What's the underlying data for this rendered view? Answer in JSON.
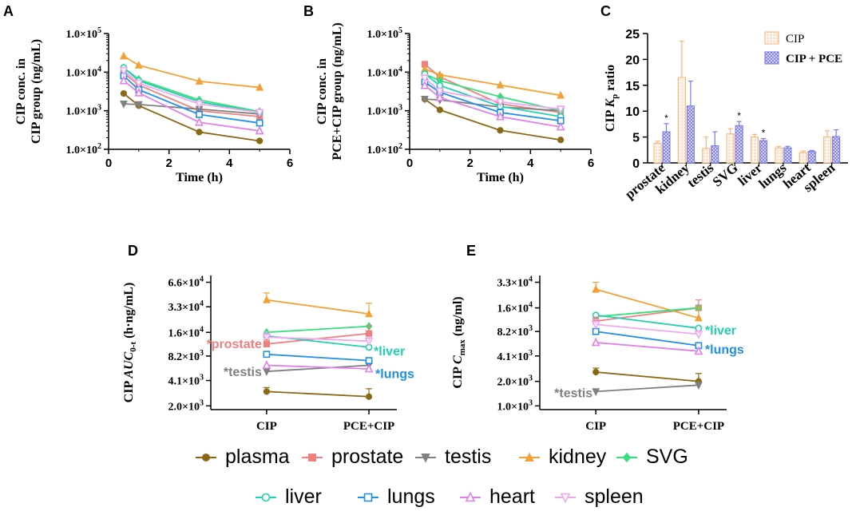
{
  "colors": {
    "plasma": "#8B6914",
    "prostate": "#F08080",
    "testis": "#808080",
    "kidney": "#F5A033",
    "svg": "#33E07A",
    "liver": "#20D0B0",
    "lungs": "#1E90E8",
    "heart": "#E080E8",
    "spleen": "#F0A8F0",
    "cip_bar": "#F5B77A",
    "pce_bar": "#7B7BE8",
    "axis": "#000000"
  },
  "legend": {
    "row1": [
      {
        "key": "plasma",
        "label": "plasma",
        "marker": "circle"
      },
      {
        "key": "prostate",
        "label": "prostate",
        "marker": "square"
      },
      {
        "key": "testis",
        "label": "testis",
        "marker": "triangle-down"
      },
      {
        "key": "kidney",
        "label": "kidney",
        "marker": "triangle-up"
      },
      {
        "key": "svg",
        "label": "SVG",
        "marker": "diamond"
      }
    ],
    "row2": [
      {
        "key": "liver",
        "label": "liver",
        "marker": "circle-open"
      },
      {
        "key": "lungs",
        "label": "lungs",
        "marker": "square-open"
      },
      {
        "key": "heart",
        "label": "heart",
        "marker": "triangle-open"
      },
      {
        "key": "spleen",
        "label": "spleen",
        "marker": "triangle-down-open"
      }
    ]
  },
  "chart_data": [
    {
      "panel": "A",
      "type": "line",
      "ylabel_line1": "CIP conc. in",
      "ylabel_line2": "CIP group (ng/mL)",
      "xlabel": "Time (h)",
      "yscale": "log",
      "ylim": [
        100,
        100000
      ],
      "yticks": [
        {
          "v": 100,
          "m": "1.0×10",
          "e": "2"
        },
        {
          "v": 1000,
          "m": "1.0×10",
          "e": "3"
        },
        {
          "v": 10000,
          "m": "1.0×10",
          "e": "4"
        },
        {
          "v": 100000,
          "m": "1.0×10",
          "e": "5"
        }
      ],
      "xlim": [
        0,
        6
      ],
      "xticks": [
        "0",
        "2",
        "4",
        "6"
      ],
      "x": [
        0.5,
        1,
        3,
        5
      ],
      "series": [
        {
          "key": "plasma",
          "values": [
            2800,
            1350,
            280,
            165
          ]
        },
        {
          "key": "prostate",
          "values": [
            9500,
            4600,
            1000,
            700
          ]
        },
        {
          "key": "testis",
          "values": [
            1500,
            1450,
            1100,
            820
          ]
        },
        {
          "key": "kidney",
          "values": [
            26000,
            15000,
            5800,
            4000
          ]
        },
        {
          "key": "svg",
          "values": [
            13000,
            6500,
            1900,
            950
          ]
        },
        {
          "key": "liver",
          "values": [
            13000,
            6000,
            1700,
            900
          ]
        },
        {
          "key": "lungs",
          "values": [
            8000,
            3500,
            800,
            480
          ]
        },
        {
          "key": "heart",
          "values": [
            6000,
            2900,
            500,
            300
          ]
        },
        {
          "key": "spleen",
          "values": [
            11000,
            5200,
            1500,
            900
          ]
        }
      ]
    },
    {
      "panel": "B",
      "type": "line",
      "ylabel_line1": "CIP conc. in",
      "ylabel_line2": "PCE+CIP group (ng/mL)",
      "xlabel": "Time (h)",
      "yscale": "log",
      "ylim": [
        100,
        100000
      ],
      "yticks": [
        {
          "v": 100,
          "m": "1.0×10",
          "e": "2"
        },
        {
          "v": 1000,
          "m": "1.0×10",
          "e": "3"
        },
        {
          "v": 10000,
          "m": "1.0×10",
          "e": "4"
        },
        {
          "v": 100000,
          "m": "1.0×10",
          "e": "5"
        }
      ],
      "xlim": [
        0,
        6
      ],
      "xticks": [
        "0",
        "2",
        "4",
        "6"
      ],
      "x": [
        0.5,
        1,
        3,
        5
      ],
      "series": [
        {
          "key": "plasma",
          "values": [
            2000,
            1050,
            310,
            175
          ]
        },
        {
          "key": "prostate",
          "values": [
            16000,
            7500,
            1500,
            900
          ]
        },
        {
          "key": "testis",
          "values": [
            2000,
            1900,
            1250,
            1000
          ]
        },
        {
          "key": "kidney",
          "values": [
            12000,
            8500,
            4600,
            2500
          ]
        },
        {
          "key": "svg",
          "values": [
            9000,
            6000,
            2300,
            1000
          ]
        },
        {
          "key": "liver",
          "values": [
            9000,
            4500,
            1300,
            700
          ]
        },
        {
          "key": "lungs",
          "values": [
            5500,
            3000,
            900,
            550
          ]
        },
        {
          "key": "heart",
          "values": [
            4500,
            2200,
            700,
            380
          ]
        },
        {
          "key": "spleen",
          "values": [
            7000,
            3200,
            1700,
            1100
          ]
        }
      ]
    },
    {
      "panel": "C",
      "type": "bar",
      "ylabel": "CIP K",
      "ylabel_sub": "p",
      "ylabel_suffix": " ratio",
      "ylim": [
        0,
        25
      ],
      "yticks": [
        "0",
        "5",
        "10",
        "15",
        "20",
        "25"
      ],
      "categories": [
        "prostate",
        "kidney",
        "testis",
        "SVG",
        "liver",
        "lungs",
        "heart",
        "spleen"
      ],
      "series": [
        {
          "name": "CIP",
          "values": [
            3.8,
            16.5,
            2.8,
            5.6,
            5.0,
            2.9,
            2.0,
            5.0
          ],
          "errors": [
            0.4,
            7.0,
            2.2,
            1.0,
            0.5,
            0.3,
            0.3,
            1.2
          ]
        },
        {
          "name": "CIP + PCE",
          "values": [
            6.0,
            11.0,
            3.3,
            7.2,
            4.3,
            2.9,
            2.2,
            5.1
          ],
          "errors": [
            1.6,
            4.8,
            2.7,
            0.8,
            0.4,
            0.3,
            0.2,
            1.3
          ]
        }
      ],
      "significance": [
        {
          "category": "prostate",
          "mark": "*"
        },
        {
          "category": "SVG",
          "mark": "*"
        },
        {
          "category": "liver",
          "mark": "*"
        }
      ],
      "legend": [
        "CIP",
        "CIP + PCE"
      ]
    },
    {
      "panel": "D",
      "type": "line",
      "ylabel": "CIP AUC",
      "ylabel_sub": "0-t",
      "ylabel_suffix": " (h·ng/mL)",
      "yscale": "log",
      "ylim": [
        1800,
        80000
      ],
      "yticks": [
        {
          "v": 2000,
          "m": "2.0×10",
          "e": "3"
        },
        {
          "v": 4100,
          "m": "4.1×10",
          "e": "3"
        },
        {
          "v": 8200,
          "m": "8.2×10",
          "e": "3"
        },
        {
          "v": 16000,
          "m": "1.6×10",
          "e": "4"
        },
        {
          "v": 33000,
          "m": "3.3×10",
          "e": "4"
        },
        {
          "v": 66000,
          "m": "6.6×10",
          "e": "4"
        }
      ],
      "categories": [
        "CIP",
        "PCE+CIP"
      ],
      "series": [
        {
          "key": "plasma",
          "values": [
            3000,
            2600
          ]
        },
        {
          "key": "prostate",
          "values": [
            11500,
            15500
          ]
        },
        {
          "key": "testis",
          "values": [
            5300,
            6300
          ]
        },
        {
          "key": "kidney",
          "values": [
            40000,
            27000
          ]
        },
        {
          "key": "svg",
          "values": [
            16000,
            19000
          ]
        },
        {
          "key": "liver",
          "values": [
            14500,
            10500
          ]
        },
        {
          "key": "lungs",
          "values": [
            8600,
            7200
          ]
        },
        {
          "key": "heart",
          "values": [
            6300,
            5700
          ]
        },
        {
          "key": "spleen",
          "values": [
            14000,
            12500
          ]
        }
      ],
      "annotations": [
        {
          "text": "*prostate",
          "key": "prostate"
        },
        {
          "text": "*testis",
          "key": "testis"
        },
        {
          "text": "*liver",
          "key": "liver"
        },
        {
          "text": "*lungs",
          "key": "lungs"
        }
      ]
    },
    {
      "panel": "E",
      "type": "line",
      "ylabel": "CIP C",
      "ylabel_sub": "max",
      "ylabel_suffix": " (ng/ml)",
      "yscale": "log",
      "ylim": [
        900,
        40000
      ],
      "yticks": [
        {
          "v": 1000,
          "m": "1.0×10",
          "e": "3"
        },
        {
          "v": 2000,
          "m": "2.0×10",
          "e": "3"
        },
        {
          "v": 4100,
          "m": "4.1×10",
          "e": "3"
        },
        {
          "v": 8200,
          "m": "8.2×10",
          "e": "3"
        },
        {
          "v": 16000,
          "m": "1.6×10",
          "e": "4"
        },
        {
          "v": 33000,
          "m": "3.3×10",
          "e": "4"
        }
      ],
      "categories": [
        "CIP",
        "PCE+CIP"
      ],
      "series": [
        {
          "key": "plasma",
          "values": [
            2600,
            2000
          ]
        },
        {
          "key": "prostate",
          "values": [
            11000,
            16000
          ]
        },
        {
          "key": "testis",
          "values": [
            1500,
            1800
          ]
        },
        {
          "key": "kidney",
          "values": [
            27000,
            12000
          ]
        },
        {
          "key": "svg",
          "values": [
            12500,
            16000
          ]
        },
        {
          "key": "liver",
          "values": [
            13000,
            9000
          ]
        },
        {
          "key": "lungs",
          "values": [
            8200,
            5500
          ]
        },
        {
          "key": "heart",
          "values": [
            6000,
            4700
          ]
        },
        {
          "key": "spleen",
          "values": [
            10000,
            7600
          ]
        }
      ],
      "annotations": [
        {
          "text": "*testis",
          "key": "testis"
        },
        {
          "text": "*liver",
          "key": "liver"
        },
        {
          "text": "*lungs",
          "key": "lungs"
        }
      ]
    }
  ]
}
